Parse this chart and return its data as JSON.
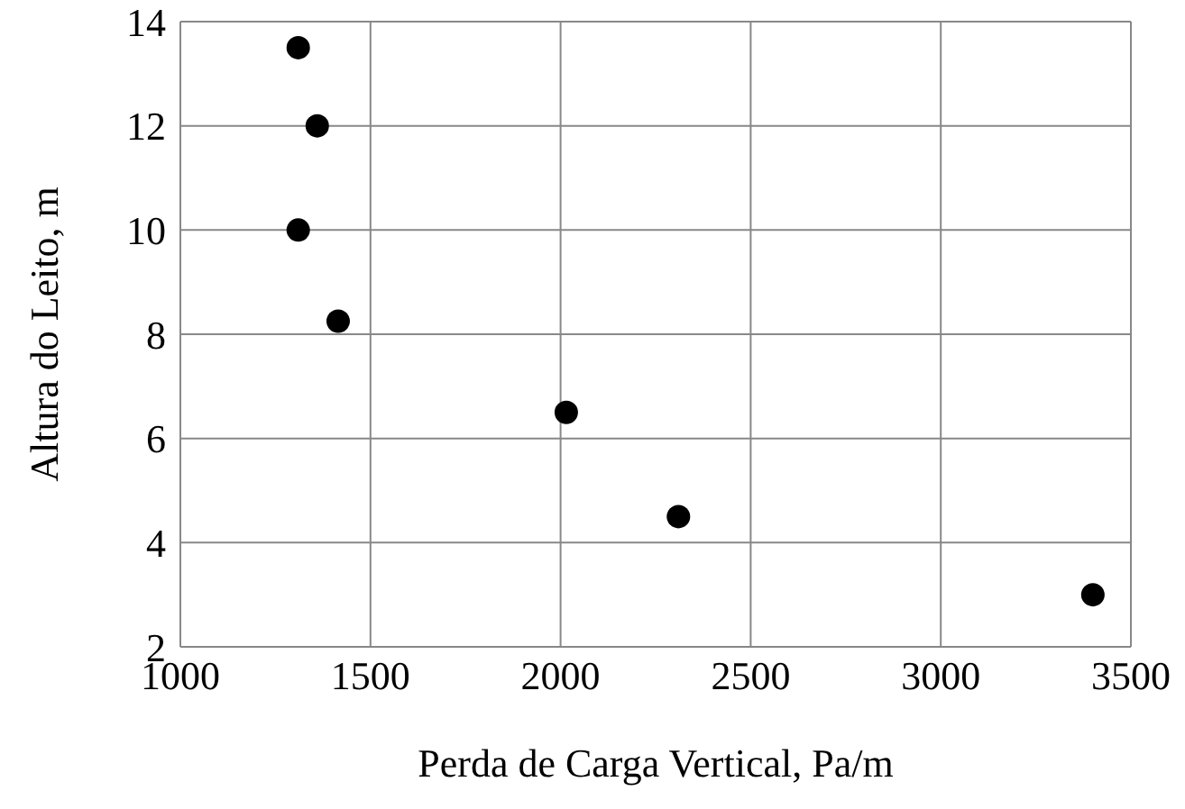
{
  "chart_data": {
    "type": "scatter",
    "xlabel": "Perda de Carga Vertical, Pa/m",
    "ylabel": "Altura do Leito, m",
    "x": [
      1310,
      1360,
      1310,
      1415,
      2015,
      2310,
      3400
    ],
    "values": [
      13.5,
      12,
      10,
      8.25,
      6.5,
      4.5,
      3
    ],
    "color": "#000000",
    "marker": "circle",
    "xlim": [
      1000,
      3500
    ],
    "xticks": [
      1000,
      1500,
      2000,
      2500,
      3000,
      3500
    ],
    "ylim": [
      2,
      14
    ],
    "yticks": [
      2,
      4,
      6,
      8,
      10,
      12,
      14
    ],
    "grid": true
  }
}
